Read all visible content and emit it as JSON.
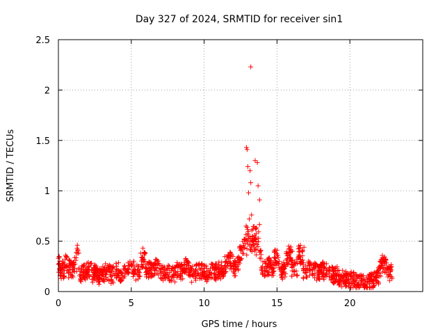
{
  "chart_data": {
    "type": "scatter",
    "title": "Day 327 of 2024, SRMTID for receiver sin1",
    "xlabel": "GPS time / hours",
    "ylabel": "SRMTID / TECUs",
    "xlim": [
      0,
      25
    ],
    "ylim": [
      0,
      2.5
    ],
    "xticks": [
      0,
      5,
      10,
      15,
      20
    ],
    "yticks": [
      0,
      0.5,
      1,
      1.5,
      2,
      2.5
    ],
    "xtick_labels": [
      "0",
      "5",
      "10",
      "15",
      "20"
    ],
    "ytick_labels": [
      "0",
      "0.5",
      "1",
      "1.5",
      "2",
      "2.5"
    ],
    "grid": true,
    "marker": "+",
    "series": [
      {
        "name": "SRMTID",
        "color": "#ff0000",
        "x": [
          0.0,
          0.1,
          0.2,
          0.3,
          0.4,
          0.5,
          0.6,
          0.7,
          0.8,
          0.9,
          1.0,
          1.1,
          1.2,
          1.3,
          1.4,
          1.5,
          1.6,
          1.7,
          1.8,
          1.9,
          2.0,
          2.1,
          2.2,
          2.3,
          2.4,
          2.5,
          2.6,
          2.7,
          2.8,
          2.9,
          3.0,
          3.2,
          3.4,
          3.6,
          3.8,
          4.0,
          4.2,
          4.4,
          4.6,
          4.8,
          5.0,
          5.2,
          5.4,
          5.6,
          5.8,
          6.0,
          6.2,
          6.4,
          6.6,
          6.8,
          7.0,
          7.2,
          7.4,
          7.6,
          7.8,
          8.0,
          8.2,
          8.4,
          8.6,
          8.8,
          9.0,
          9.2,
          9.4,
          9.6,
          9.8,
          10.0,
          10.2,
          10.4,
          10.6,
          10.8,
          11.0,
          11.2,
          11.4,
          11.6,
          11.8,
          12.0,
          12.2,
          12.4,
          12.6,
          12.8,
          12.9,
          12.95,
          13.0,
          13.05,
          13.1,
          13.15,
          13.2,
          13.25,
          13.3,
          13.35,
          13.4,
          13.45,
          13.5,
          13.6,
          13.65,
          13.7,
          13.8,
          13.9,
          14.0,
          14.2,
          14.4,
          14.6,
          14.8,
          15.0,
          15.2,
          15.4,
          15.6,
          15.8,
          16.0,
          16.2,
          16.4,
          16.6,
          16.8,
          17.0,
          17.2,
          17.4,
          17.6,
          17.8,
          18.0,
          18.2,
          18.4,
          18.6,
          18.8,
          19.0,
          19.2,
          19.4,
          19.6,
          19.8,
          20.0,
          20.2,
          20.4,
          20.6,
          20.8,
          21.0,
          21.2,
          21.4,
          21.6,
          21.8,
          22.0,
          22.2,
          22.4,
          22.6,
          22.8,
          0.05,
          0.55,
          1.25,
          2.05,
          3.55,
          5.75,
          7.05,
          8.55,
          10.55,
          12.05,
          13.2,
          13.3,
          13.5,
          13.55,
          14.9,
          15.05,
          16.05,
          16.85,
          17.55,
          18.55,
          19.05,
          20.05,
          21.05,
          22.15,
          22.55
        ],
        "y": [
          0.33,
          0.22,
          0.18,
          0.27,
          0.15,
          0.36,
          0.21,
          0.19,
          0.28,
          0.16,
          0.24,
          0.2,
          0.31,
          0.46,
          0.22,
          0.17,
          0.19,
          0.25,
          0.14,
          0.2,
          0.22,
          0.16,
          0.28,
          0.12,
          0.19,
          0.23,
          0.15,
          0.18,
          0.13,
          0.21,
          0.17,
          0.19,
          0.22,
          0.15,
          0.18,
          0.25,
          0.2,
          0.16,
          0.23,
          0.18,
          0.26,
          0.2,
          0.17,
          0.22,
          0.43,
          0.19,
          0.24,
          0.18,
          0.21,
          0.27,
          0.2,
          0.16,
          0.19,
          0.23,
          0.15,
          0.2,
          0.24,
          0.18,
          0.22,
          0.27,
          0.19,
          0.16,
          0.21,
          0.18,
          0.23,
          0.2,
          0.15,
          0.19,
          0.24,
          0.17,
          0.22,
          0.2,
          0.25,
          0.28,
          0.33,
          0.26,
          0.22,
          0.31,
          0.42,
          0.48,
          1.43,
          1.41,
          1.24,
          0.98,
          0.72,
          1.2,
          1.08,
          0.76,
          0.52,
          0.62,
          0.47,
          0.44,
          0.52,
          0.63,
          1.28,
          1.05,
          0.91,
          0.33,
          0.25,
          0.2,
          0.28,
          0.22,
          0.26,
          0.41,
          0.22,
          0.19,
          0.25,
          0.45,
          0.27,
          0.2,
          0.28,
          0.46,
          0.23,
          0.19,
          0.26,
          0.22,
          0.18,
          0.21,
          0.19,
          0.23,
          0.17,
          0.2,
          0.14,
          0.18,
          0.16,
          0.1,
          0.15,
          0.12,
          0.08,
          0.14,
          0.11,
          0.09,
          0.13,
          0.07,
          0.1,
          0.12,
          0.08,
          0.14,
          0.18,
          0.26,
          0.3,
          0.22,
          0.15,
          0.28,
          0.34,
          0.2,
          0.29,
          0.19,
          0.25,
          0.22,
          0.21,
          0.27,
          0.23,
          2.23,
          0.55,
          1.3,
          0.5,
          0.39,
          0.36,
          0.4,
          0.44,
          0.24,
          0.21,
          0.18,
          0.12,
          0.09,
          0.32,
          0.24
        ],
        "band_note": "dense scatter band of points roughly 0.1–0.35 TECU across 0–23 h"
      }
    ]
  }
}
